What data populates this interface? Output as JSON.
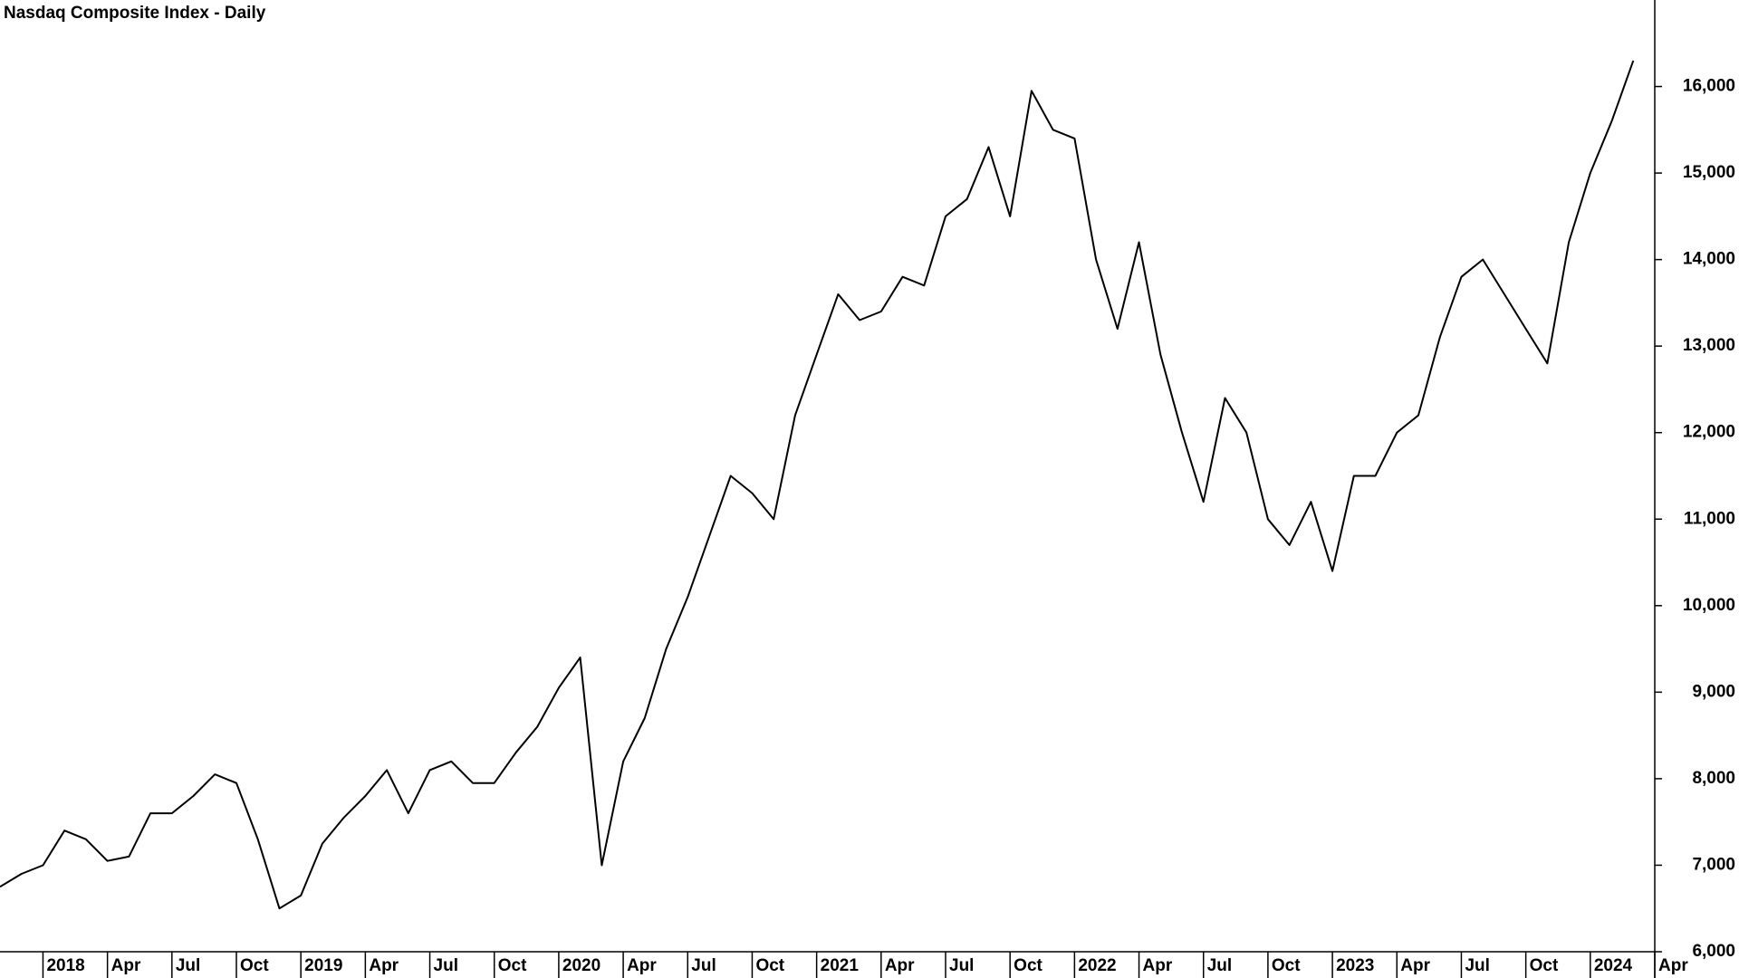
{
  "chart_data": {
    "type": "line",
    "title": "Nasdaq Composite Index - Daily",
    "x": [
      "2017-11",
      "2017-12",
      "2018-01",
      "2018-02",
      "2018-03",
      "2018-04",
      "2018-05",
      "2018-06",
      "2018-07",
      "2018-08",
      "2018-09",
      "2018-10",
      "2018-11",
      "2018-12",
      "2019-01",
      "2019-02",
      "2019-03",
      "2019-04",
      "2019-05",
      "2019-06",
      "2019-07",
      "2019-08",
      "2019-09",
      "2019-10",
      "2019-11",
      "2019-12",
      "2020-01",
      "2020-02",
      "2020-03",
      "2020-04",
      "2020-05",
      "2020-06",
      "2020-07",
      "2020-08",
      "2020-09",
      "2020-10",
      "2020-11",
      "2020-12",
      "2021-01",
      "2021-02",
      "2021-03",
      "2021-04",
      "2021-05",
      "2021-06",
      "2021-07",
      "2021-08",
      "2021-09",
      "2021-10",
      "2021-11",
      "2021-12",
      "2022-01",
      "2022-02",
      "2022-03",
      "2022-04",
      "2022-05",
      "2022-06",
      "2022-07",
      "2022-08",
      "2022-09",
      "2022-10",
      "2022-11",
      "2022-12",
      "2023-01",
      "2023-02",
      "2023-03",
      "2023-04",
      "2023-05",
      "2023-06",
      "2023-07",
      "2023-08",
      "2023-09",
      "2023-10",
      "2023-11",
      "2023-12",
      "2024-01",
      "2024-02",
      "2024-03"
    ],
    "series": [
      {
        "name": "Nasdaq Composite",
        "color": "#000000",
        "values": [
          6750,
          6900,
          7000,
          7400,
          7300,
          7050,
          7100,
          7600,
          7600,
          7800,
          8050,
          7950,
          7300,
          6500,
          6650,
          7250,
          7550,
          7800,
          8100,
          7600,
          8100,
          8200,
          7950,
          7950,
          8300,
          8600,
          9050,
          9400,
          7000,
          8200,
          8700,
          9500,
          10100,
          10800,
          11500,
          11300,
          11000,
          12200,
          12900,
          13600,
          13300,
          13400,
          13800,
          13700,
          14500,
          14700,
          15300,
          14500,
          15950,
          15500,
          15400,
          14000,
          13200,
          14200,
          12900,
          12000,
          11200,
          12400,
          12000,
          11000,
          10700,
          11200,
          10400,
          11500,
          11500,
          12000,
          12200,
          13100,
          13800,
          14000,
          13600,
          13200,
          12800,
          14200,
          15000,
          15600,
          16300
        ]
      }
    ],
    "xlim": [
      "2017-11",
      "2024-04"
    ],
    "xticks": [
      {
        "value": "2018-01",
        "label": "2018"
      },
      {
        "value": "2018-04",
        "label": "Apr"
      },
      {
        "value": "2018-07",
        "label": "Jul"
      },
      {
        "value": "2018-10",
        "label": "Oct"
      },
      {
        "value": "2019-01",
        "label": "2019"
      },
      {
        "value": "2019-04",
        "label": "Apr"
      },
      {
        "value": "2019-07",
        "label": "Jul"
      },
      {
        "value": "2019-10",
        "label": "Oct"
      },
      {
        "value": "2020-01",
        "label": "2020"
      },
      {
        "value": "2020-04",
        "label": "Apr"
      },
      {
        "value": "2020-07",
        "label": "Jul"
      },
      {
        "value": "2020-10",
        "label": "Oct"
      },
      {
        "value": "2021-01",
        "label": "2021"
      },
      {
        "value": "2021-04",
        "label": "Apr"
      },
      {
        "value": "2021-07",
        "label": "Jul"
      },
      {
        "value": "2021-10",
        "label": "Oct"
      },
      {
        "value": "2022-01",
        "label": "2022"
      },
      {
        "value": "2022-04",
        "label": "Apr"
      },
      {
        "value": "2022-07",
        "label": "Jul"
      },
      {
        "value": "2022-10",
        "label": "Oct"
      },
      {
        "value": "2023-01",
        "label": "2023"
      },
      {
        "value": "2023-04",
        "label": "Apr"
      },
      {
        "value": "2023-07",
        "label": "Jul"
      },
      {
        "value": "2023-10",
        "label": "Oct"
      },
      {
        "value": "2024-01",
        "label": "2024"
      },
      {
        "value": "2024-04",
        "label": "Apr"
      }
    ],
    "ylim": [
      6000,
      17000
    ],
    "yticks": [
      {
        "value": 6000,
        "label": "6,000"
      },
      {
        "value": 7000,
        "label": "7,000"
      },
      {
        "value": 8000,
        "label": "8,000"
      },
      {
        "value": 9000,
        "label": "9,000"
      },
      {
        "value": 10000,
        "label": "10,000"
      },
      {
        "value": 11000,
        "label": "11,000"
      },
      {
        "value": 12000,
        "label": "12,000"
      },
      {
        "value": 13000,
        "label": "13,000"
      },
      {
        "value": 14000,
        "label": "14,000"
      },
      {
        "value": 15000,
        "label": "15,000"
      },
      {
        "value": 16000,
        "label": "16,000"
      }
    ],
    "y_axis_side": "right",
    "grid": false
  }
}
